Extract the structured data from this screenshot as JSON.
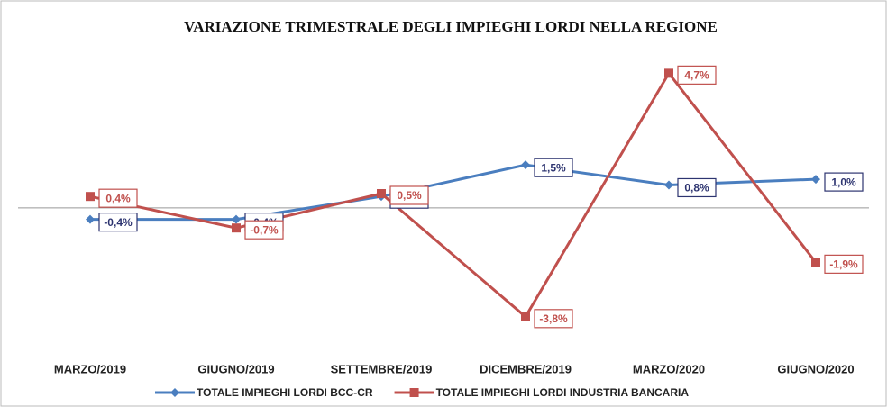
{
  "chart_data": {
    "type": "line",
    "title": "VARIAZIONE TRIMESTRALE DEGLI IMPIEGHI LORDI NELLA REGIONE",
    "categories": [
      "MARZO/2019",
      "GIUGNO/2019",
      "SETTEMBRE/2019",
      "DICEMBRE/2019",
      "MARZO/2020",
      "GIUGNO/2020"
    ],
    "series": [
      {
        "name": "TOTALE IMPIEGHI LORDI BCC-CR",
        "color": "#4a7ebf",
        "values": [
          -0.4,
          -0.4,
          0.4,
          1.5,
          0.8,
          1.0
        ],
        "value_labels": [
          "-0,4%",
          "-0,4%",
          "0,4%",
          "1,5%",
          "0,8%",
          "1,0%"
        ]
      },
      {
        "name": "TOTALE IMPIEGHI LORDI INDUSTRIA BANCARIA",
        "color": "#c0504d",
        "values": [
          0.4,
          -0.7,
          0.5,
          -3.8,
          4.7,
          -1.9
        ],
        "value_labels": [
          "0,4%",
          "-0,7%",
          "0,5%",
          "-3,8%",
          "4,7%",
          "-1,9%"
        ]
      }
    ],
    "ylim": [
      -5,
      6
    ],
    "legend": "bottom"
  }
}
